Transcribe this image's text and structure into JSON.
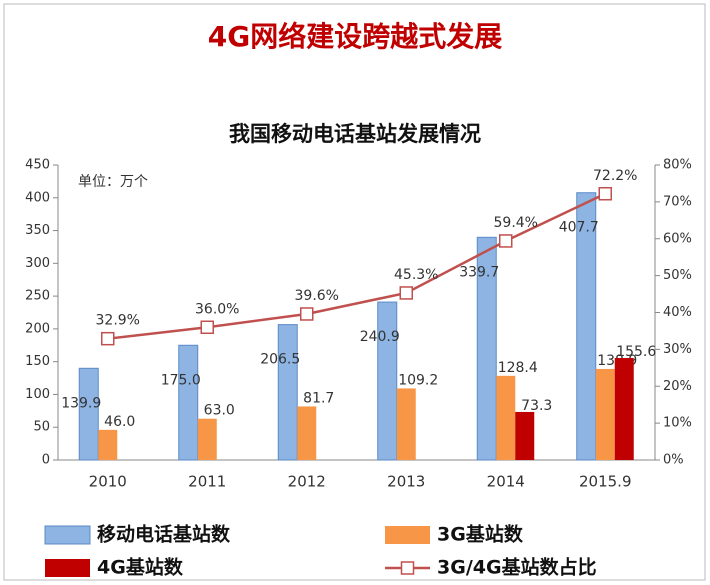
{
  "chart_data": {
    "type": "bar",
    "heading": "4G网络建设跨越式发展",
    "title": "我国移动电话基站发展情况",
    "annotation": "单位：万个",
    "categories": [
      "2010",
      "2011",
      "2012",
      "2013",
      "2014",
      "2015.9"
    ],
    "series": [
      {
        "name": "移动电话基站数",
        "color": "#8eb4e3",
        "values": [
          139.9,
          175.0,
          206.5,
          240.9,
          339.7,
          407.7
        ],
        "value_labels": [
          "139.9",
          "175.0",
          "206.5",
          "240.9",
          "339.7",
          "407.7"
        ]
      },
      {
        "name": "3G基站数",
        "color": "#f79646",
        "values": [
          46.0,
          63.0,
          81.7,
          109.2,
          128.4,
          138.9
        ],
        "value_labels": [
          "46.0",
          "63.0",
          "81.7",
          "109.2",
          "128.4",
          "138.9"
        ]
      },
      {
        "name": "4G基站数",
        "color": "#c00000",
        "values": [
          null,
          null,
          null,
          null,
          73.3,
          155.6
        ],
        "value_labels": [
          null,
          null,
          null,
          null,
          "73.3",
          "155.6"
        ]
      },
      {
        "name": "3G/4G基站数占比",
        "type": "line",
        "axis": "y2",
        "color": "#c0504d",
        "values": [
          32.9,
          36.0,
          39.6,
          45.3,
          59.4,
          72.2
        ],
        "value_labels": [
          "32.9%",
          "36.0%",
          "39.6%",
          "45.3%",
          "59.4%",
          "72.2%"
        ]
      }
    ],
    "ylim": [
      0,
      450
    ],
    "yticks": [
      0,
      50,
      100,
      150,
      200,
      250,
      300,
      350,
      400,
      450
    ],
    "y2lim": [
      0,
      80
    ],
    "y2ticks": [
      {
        "value": 0,
        "label": "0%"
      },
      {
        "value": 10,
        "label": "10%"
      },
      {
        "value": 20,
        "label": "20%"
      },
      {
        "value": 30,
        "label": "30%"
      },
      {
        "value": 40,
        "label": "40%"
      },
      {
        "value": 50,
        "label": "50%"
      },
      {
        "value": 60,
        "label": "60%"
      },
      {
        "value": 70,
        "label": "70%"
      },
      {
        "value": 80,
        "label": "80%"
      }
    ],
    "grid": false,
    "legend": "bottom"
  }
}
